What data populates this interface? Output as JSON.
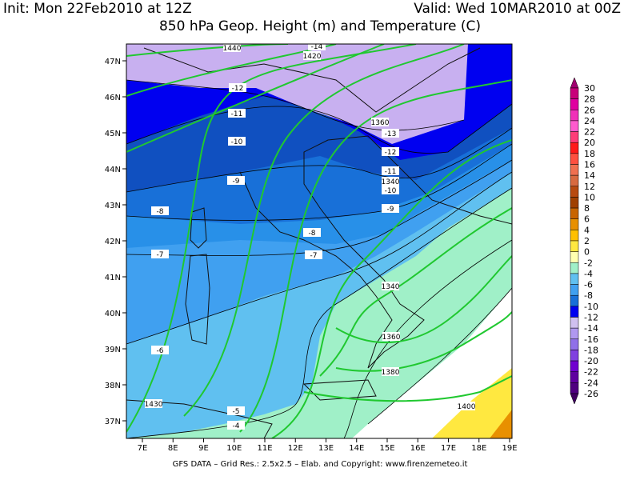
{
  "header": {
    "init": "Init: Mon 22Feb2010 at 12Z",
    "valid": "Valid: Wed 10MAR2010 at 00Z",
    "title": "850 hPa Geop. Height (m) and Temperature (C)"
  },
  "lat_labels": [
    "47N",
    "46N",
    "45N",
    "44N",
    "43N",
    "42N",
    "41N",
    "40N",
    "39N",
    "38N",
    "37N"
  ],
  "lon_labels": [
    "7E",
    "8E",
    "9E",
    "10E",
    "11E",
    "12E",
    "13E",
    "14E",
    "15E",
    "16E",
    "17E",
    "18E",
    "19E"
  ],
  "colorbar": {
    "labels": [
      "30",
      "28",
      "26",
      "24",
      "22",
      "20",
      "18",
      "16",
      "14",
      "12",
      "10",
      "8",
      "6",
      "4",
      "2",
      "0",
      "-2",
      "-4",
      "-6",
      "-8",
      "-10",
      "-12",
      "-14",
      "-16",
      "-18",
      "-20",
      "-22",
      "-24",
      "-26"
    ],
    "colors": [
      "#a00070",
      "#c8007a",
      "#e000a0",
      "#f030b8",
      "#ff5acd",
      "#ff3c78",
      "#ff1a1a",
      "#ff5040",
      "#f07050",
      "#d86a40",
      "#b84a10",
      "#a04000",
      "#c86400",
      "#e89000",
      "#ffc000",
      "#ffe840",
      "#ffffb0",
      "#a0f0c8",
      "#60c0f0",
      "#40a0f0",
      "#1870d8",
      "#0000f0",
      "#d0c0f0",
      "#b098f0",
      "#9070e8",
      "#8040e0",
      "#7000d0",
      "#6000a0",
      "#500080",
      "#400060"
    ]
  },
  "contour_labels": [
    "-14",
    "1420",
    "1440",
    "-12",
    "-11",
    "-10",
    "-9",
    "-8",
    "-7",
    "-6",
    "-5",
    "-4",
    "1360",
    "-13",
    "-12",
    "-11",
    "1340",
    "-10",
    "-9",
    "-8",
    "-7",
    "1340",
    "1360",
    "1380",
    "1400",
    "1430"
  ],
  "footer": "GFS DATA – Grid Res.: 2.5x2.5 – Elab. and Copyright: www.firenzemeteo.it"
}
